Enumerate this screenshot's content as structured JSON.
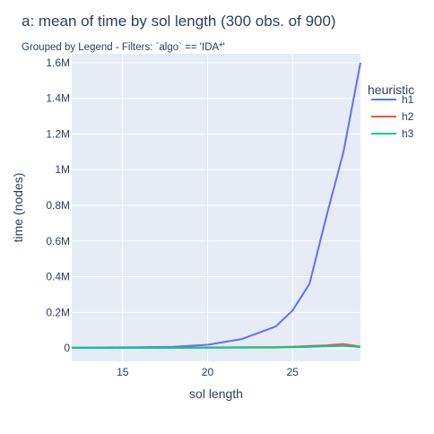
{
  "chart_data": {
    "type": "line",
    "title": "a: mean of time   by sol length (300 obs. of 900)",
    "subtitle": "Grouped by Legend - Filters: `algo` == 'IDA*'",
    "xlabel": "sol length",
    "ylabel": "time (nodes)",
    "xlim": [
      12,
      29
    ],
    "ylim": [
      -75000,
      1650000
    ],
    "x_ticks": [
      15,
      20,
      25
    ],
    "x_tick_labels": [
      "15",
      "20",
      "25"
    ],
    "y_ticks": [
      0,
      200000,
      400000,
      600000,
      800000,
      1000000,
      1200000,
      1400000,
      1600000
    ],
    "y_tick_labels": [
      "0",
      "0.2M",
      "0.4M",
      "0.6M",
      "0.8M",
      "1M",
      "1.2M",
      "1.4M",
      "1.6M"
    ],
    "grid": true,
    "legend_title": "heuristic",
    "legend_position": "right",
    "x": [
      12,
      14,
      16,
      18,
      20,
      22,
      24,
      25,
      26,
      27,
      28,
      29
    ],
    "series": [
      {
        "name": "h1",
        "color": "#636efa",
        "values": [
          2000,
          3000,
          4000,
          7000,
          18000,
          50000,
          120000,
          210000,
          360000,
          740000,
          1100000,
          1600000
        ]
      },
      {
        "name": "h2",
        "color": "#ef553b",
        "values": [
          1000,
          1000,
          1500,
          2000,
          3000,
          4000,
          5000,
          7000,
          11000,
          15000,
          22000,
          8000
        ]
      },
      {
        "name": "h3",
        "color": "#00cc96",
        "values": [
          500,
          600,
          700,
          900,
          1200,
          1800,
          2500,
          4000,
          6000,
          9000,
          12000,
          5000
        ]
      }
    ]
  }
}
